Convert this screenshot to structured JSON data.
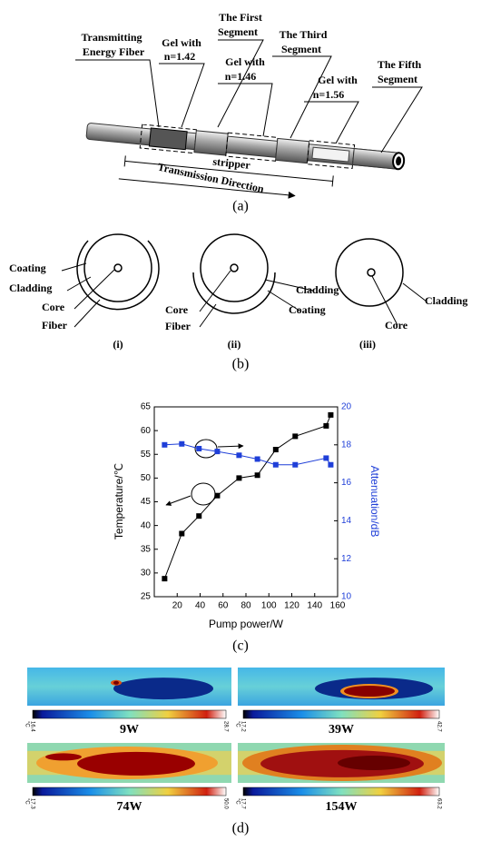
{
  "panel_a": {
    "labels": [
      [
        "Transmitting",
        "Energy Fiber"
      ],
      [
        "Gel with",
        "n=1.42"
      ],
      [
        "The First",
        "Segment"
      ],
      [
        "Gel with",
        "n=1.46"
      ],
      [
        "The Third",
        "Segment"
      ],
      [
        "Gel with",
        "n=1.56"
      ],
      [
        "The Fifth",
        "Segment"
      ]
    ],
    "stripper": "stripper",
    "direction": "Transmission Direction",
    "caption": "(a)"
  },
  "panel_b": {
    "diagrams": [
      {
        "labels": [
          "Coating",
          "Cladding",
          "Core",
          "Fiber"
        ],
        "caption": "(i)"
      },
      {
        "labels": [
          "Core",
          "Fiber",
          "Cladding",
          "Coating"
        ],
        "caption": "(ii)"
      },
      {
        "labels": [
          "Cladding",
          "Core"
        ],
        "caption": "(iii)"
      }
    ],
    "caption": "(b)"
  },
  "chart_data": {
    "type": "line",
    "x_label": "Pump power/W",
    "y_label": "Temperature/℃",
    "y2_label": "Attenuation/dB",
    "caption": "(c)",
    "x": [
      9,
      24,
      39,
      55,
      74,
      90,
      106,
      123,
      150,
      154
    ],
    "series": [
      {
        "color": "#000000",
        "values": [
          28.8,
          38.3,
          42.0,
          46.3,
          50.0,
          50.6,
          56.0,
          58.8,
          61.0,
          63.3
        ]
      },
      {
        "color": "#1f3fd8",
        "axis": "y2",
        "values": [
          18.0,
          18.05,
          17.8,
          17.65,
          17.45,
          17.25,
          16.95,
          16.95,
          17.3,
          16.95
        ]
      }
    ],
    "xlim": [
      0,
      160
    ],
    "xticks": [
      20,
      40,
      60,
      80,
      100,
      120,
      140,
      160
    ],
    "ylim": [
      25,
      65
    ],
    "yticks": [
      25,
      30,
      35,
      40,
      45,
      50,
      55,
      60,
      65
    ],
    "y2lim": [
      10,
      20
    ],
    "y2ticks": [
      10,
      12,
      14,
      16,
      18,
      20
    ]
  },
  "panel_d": {
    "images": [
      {
        "label": "9W",
        "min": "16.4",
        "max": "28.7",
        "unit": "°C"
      },
      {
        "label": "39W",
        "min": "17.2",
        "max": "42.7",
        "unit": "°C"
      },
      {
        "label": "74W",
        "min": "17.3",
        "max": "50.0",
        "unit": "°C"
      },
      {
        "label": "154W",
        "min": "17.7",
        "max": "63.2",
        "unit": "°C"
      }
    ],
    "caption": "(d)"
  }
}
